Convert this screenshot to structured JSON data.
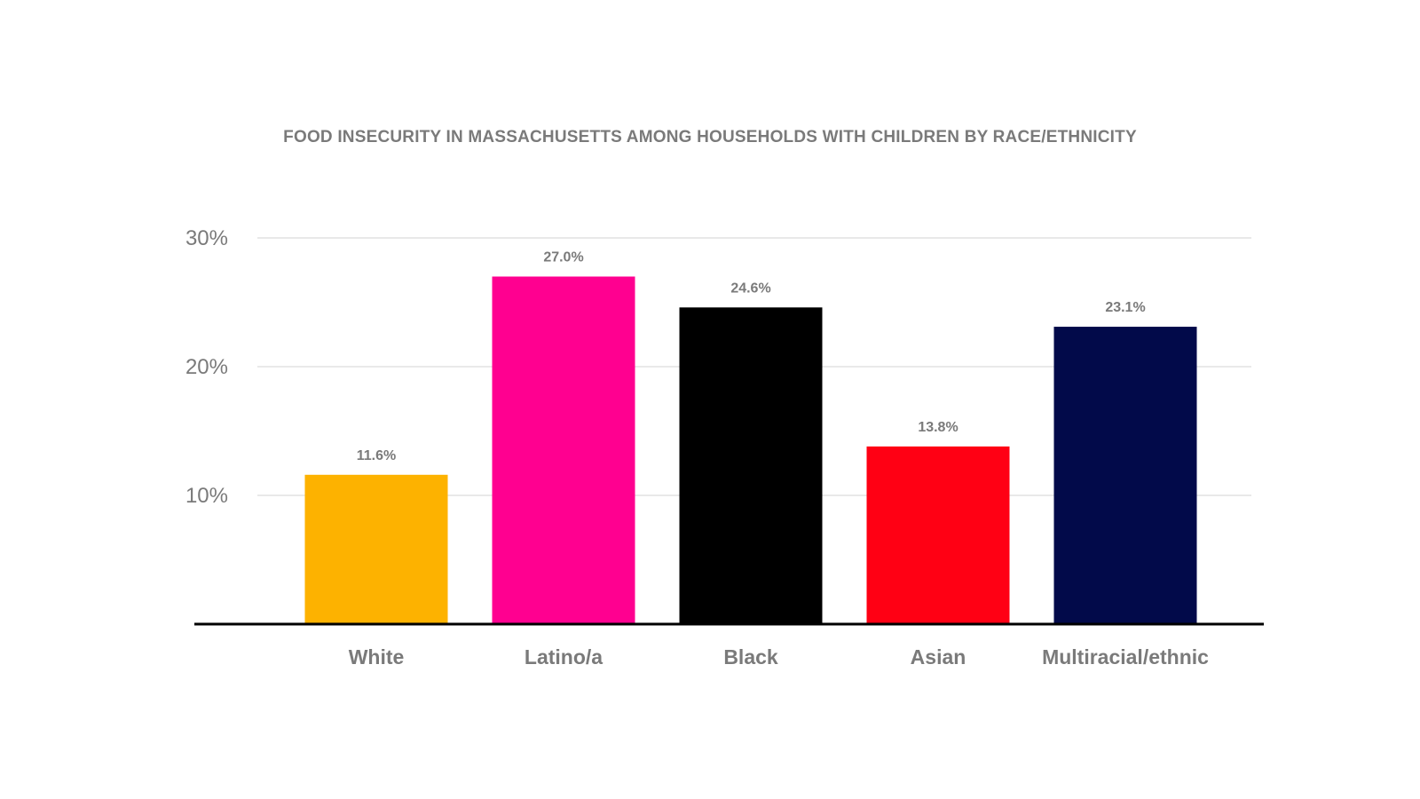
{
  "chart_data": {
    "type": "bar",
    "title": "FOOD INSECURITY IN MASSACHUSETTS AMONG HOUSEHOLDS WITH CHILDREN BY RACE/ETHNICITY",
    "xlabel": "",
    "ylabel": "",
    "categories": [
      "White",
      "Latino/a",
      "Black",
      "Asian",
      "Multiracial/ethnic"
    ],
    "values": [
      11.6,
      27.0,
      24.6,
      13.8,
      23.1
    ],
    "value_labels": [
      "11.6%",
      "27.0%",
      "24.6%",
      "13.8%",
      "23.1%"
    ],
    "bar_colors": [
      "#FDB200",
      "#FF0090",
      "#000000",
      "#FF0014",
      "#020A4A"
    ],
    "ylim": [
      0,
      30
    ],
    "yticks": [
      {
        "value": 10,
        "label": "10%"
      },
      {
        "value": 20,
        "label": "20%"
      },
      {
        "value": 30,
        "label": "30%"
      }
    ],
    "grid": true,
    "legend": "none"
  },
  "colors": {
    "text": "#7A7A7A",
    "gridline": "#D3D3D3",
    "baseline": "#000000"
  }
}
